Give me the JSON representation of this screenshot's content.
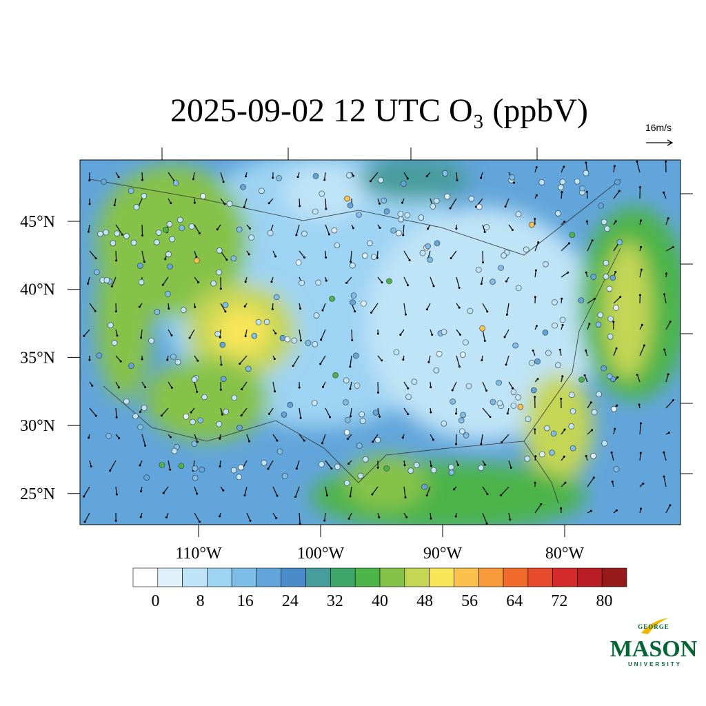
{
  "chart_data": {
    "type": "map",
    "title": "2025-09-02 12 UTC O₃ (ppbV)",
    "vector_reference": "16m/s",
    "lat_ticks": [
      {
        "value": 45,
        "label": "45°N"
      },
      {
        "value": 40,
        "label": "40°N"
      },
      {
        "value": 35,
        "label": "35°N"
      },
      {
        "value": 30,
        "label": "30°N"
      },
      {
        "value": 25,
        "label": "25°N"
      }
    ],
    "lon_ticks": [
      {
        "value": -110,
        "label": "110°W"
      },
      {
        "value": -100,
        "label": "100°W"
      },
      {
        "value": -90,
        "label": "90°W"
      },
      {
        "value": -80,
        "label": "80°W"
      }
    ],
    "colorbar": {
      "range": [
        -4,
        84
      ],
      "ticks": [
        0,
        8,
        16,
        24,
        32,
        40,
        48,
        56,
        64,
        72,
        80
      ],
      "colors": [
        "#ffffff",
        "#dff1fb",
        "#bfe3f7",
        "#9dd3f3",
        "#7dbde8",
        "#62a5da",
        "#4a8bc9",
        "#479c9c",
        "#3fa66a",
        "#4cb448",
        "#86c24a",
        "#c4d654",
        "#f8e558",
        "#fac14d",
        "#f79a3c",
        "#f16a2b",
        "#e44a2b",
        "#d42a2b",
        "#b81e24",
        "#961a1c"
      ]
    },
    "logo": {
      "line1": "GEORGE",
      "line2": "MASON",
      "line3": "UNIVERSITY"
    }
  }
}
